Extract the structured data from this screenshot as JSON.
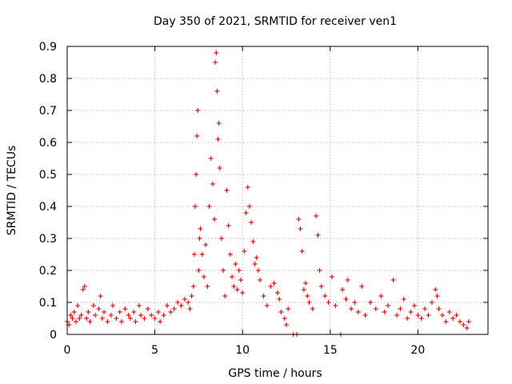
{
  "chart_data": {
    "type": "scatter",
    "title": "Day 350 of 2021, SRMTID for receiver ven1",
    "xlabel": "GPS time / hours",
    "ylabel": "SRMTID / TECUs",
    "xlim": [
      0,
      24
    ],
    "ylim": [
      0,
      0.9
    ],
    "xticks": [
      0,
      5,
      10,
      15,
      20
    ],
    "xtick_labels": [
      "0",
      "5",
      "10",
      "15",
      "20"
    ],
    "yticks": [
      0,
      0.1,
      0.2,
      0.3,
      0.4,
      0.5,
      0.6,
      0.7,
      0.8,
      0.9
    ],
    "ytick_labels": [
      "0",
      "0.1",
      "0.2",
      "0.3",
      "0.4",
      "0.5",
      "0.6",
      "0.7",
      "0.8",
      "0.9"
    ],
    "grid": true,
    "marker": "plus",
    "series": [
      {
        "name": "ven1",
        "color": "#e00000",
        "points": [
          [
            0.0,
            0.04
          ],
          [
            0.1,
            0.03
          ],
          [
            0.2,
            0.06
          ],
          [
            0.3,
            0.05
          ],
          [
            0.4,
            0.07
          ],
          [
            0.5,
            0.04
          ],
          [
            0.6,
            0.09
          ],
          [
            0.7,
            0.05
          ],
          [
            0.8,
            0.06
          ],
          [
            0.9,
            0.14
          ],
          [
            1.0,
            0.15
          ],
          [
            1.1,
            0.05
          ],
          [
            1.2,
            0.07
          ],
          [
            1.3,
            0.04
          ],
          [
            1.5,
            0.09
          ],
          [
            1.6,
            0.06
          ],
          [
            1.8,
            0.08
          ],
          [
            1.9,
            0.12
          ],
          [
            2.0,
            0.05
          ],
          [
            2.1,
            0.07
          ],
          [
            2.3,
            0.04
          ],
          [
            2.5,
            0.06
          ],
          [
            2.6,
            0.09
          ],
          [
            2.8,
            0.05
          ],
          [
            3.0,
            0.07
          ],
          [
            3.1,
            0.04
          ],
          [
            3.3,
            0.08
          ],
          [
            3.5,
            0.06
          ],
          [
            3.6,
            0.05
          ],
          [
            3.8,
            0.07
          ],
          [
            3.9,
            0.04
          ],
          [
            4.1,
            0.09
          ],
          [
            4.2,
            0.06
          ],
          [
            4.4,
            0.05
          ],
          [
            4.6,
            0.08
          ],
          [
            4.8,
            0.06
          ],
          [
            5.0,
            0.05
          ],
          [
            5.2,
            0.07
          ],
          [
            5.3,
            0.04
          ],
          [
            5.5,
            0.06
          ],
          [
            5.7,
            0.09
          ],
          [
            5.9,
            0.07
          ],
          [
            6.1,
            0.08
          ],
          [
            6.3,
            0.1
          ],
          [
            6.5,
            0.09
          ],
          [
            6.7,
            0.11
          ],
          [
            6.9,
            0.1
          ],
          [
            7.0,
            0.08
          ],
          [
            7.1,
            0.12
          ],
          [
            7.2,
            0.15
          ],
          [
            7.25,
            0.25
          ],
          [
            7.3,
            0.4
          ],
          [
            7.35,
            0.5
          ],
          [
            7.4,
            0.62
          ],
          [
            7.45,
            0.7
          ],
          [
            7.5,
            0.2
          ],
          [
            7.55,
            0.3
          ],
          [
            7.6,
            0.33
          ],
          [
            7.7,
            0.25
          ],
          [
            7.8,
            0.18
          ],
          [
            7.9,
            0.28
          ],
          [
            8.0,
            0.15
          ],
          [
            8.1,
            0.4
          ],
          [
            8.2,
            0.55
          ],
          [
            8.3,
            0.47
          ],
          [
            8.4,
            0.36
          ],
          [
            8.45,
            0.85
          ],
          [
            8.5,
            0.88
          ],
          [
            8.55,
            0.76
          ],
          [
            8.6,
            0.61
          ],
          [
            8.65,
            0.66
          ],
          [
            8.7,
            0.52
          ],
          [
            8.8,
            0.3
          ],
          [
            8.9,
            0.2
          ],
          [
            9.0,
            0.12
          ],
          [
            9.1,
            0.45
          ],
          [
            9.2,
            0.34
          ],
          [
            9.3,
            0.25
          ],
          [
            9.4,
            0.18
          ],
          [
            9.5,
            0.15
          ],
          [
            9.6,
            0.22
          ],
          [
            9.7,
            0.14
          ],
          [
            9.8,
            0.2
          ],
          [
            9.9,
            0.17
          ],
          [
            10.0,
            0.13
          ],
          [
            10.1,
            0.26
          ],
          [
            10.2,
            0.38
          ],
          [
            10.3,
            0.46
          ],
          [
            10.4,
            0.4
          ],
          [
            10.5,
            0.35
          ],
          [
            10.6,
            0.29
          ],
          [
            10.7,
            0.22
          ],
          [
            10.8,
            0.24
          ],
          [
            10.9,
            0.2
          ],
          [
            11.0,
            0.17
          ],
          [
            11.2,
            0.12
          ],
          [
            11.4,
            0.09
          ],
          [
            11.6,
            0.15
          ],
          [
            11.8,
            0.16
          ],
          [
            12.0,
            0.13
          ],
          [
            12.1,
            0.11
          ],
          [
            12.2,
            0.07
          ],
          [
            12.4,
            0.05
          ],
          [
            12.5,
            0.03
          ],
          [
            12.6,
            0.08
          ],
          [
            12.9,
            0.0
          ],
          [
            13.1,
            0.0
          ],
          [
            13.2,
            0.36
          ],
          [
            13.3,
            0.33
          ],
          [
            13.4,
            0.26
          ],
          [
            13.5,
            0.14
          ],
          [
            13.6,
            0.16
          ],
          [
            13.7,
            0.12
          ],
          [
            13.8,
            0.1
          ],
          [
            14.0,
            0.08
          ],
          [
            14.2,
            0.37
          ],
          [
            14.3,
            0.31
          ],
          [
            14.4,
            0.2
          ],
          [
            14.5,
            0.15
          ],
          [
            14.7,
            0.12
          ],
          [
            14.9,
            0.1
          ],
          [
            15.1,
            0.18
          ],
          [
            15.3,
            0.09
          ],
          [
            15.6,
            0.0
          ],
          [
            15.7,
            0.14
          ],
          [
            15.9,
            0.11
          ],
          [
            16.0,
            0.17
          ],
          [
            16.2,
            0.08
          ],
          [
            16.4,
            0.1
          ],
          [
            16.6,
            0.07
          ],
          [
            16.8,
            0.15
          ],
          [
            17.0,
            0.06
          ],
          [
            17.3,
            0.1
          ],
          [
            17.6,
            0.08
          ],
          [
            17.9,
            0.12
          ],
          [
            18.1,
            0.07
          ],
          [
            18.3,
            0.09
          ],
          [
            18.6,
            0.17
          ],
          [
            18.8,
            0.06
          ],
          [
            19.0,
            0.08
          ],
          [
            19.2,
            0.11
          ],
          [
            19.4,
            0.05
          ],
          [
            19.6,
            0.07
          ],
          [
            19.8,
            0.09
          ],
          [
            20.0,
            0.06
          ],
          [
            20.2,
            0.05
          ],
          [
            20.4,
            0.08
          ],
          [
            20.6,
            0.06
          ],
          [
            20.8,
            0.1
          ],
          [
            21.0,
            0.14
          ],
          [
            21.1,
            0.12
          ],
          [
            21.2,
            0.08
          ],
          [
            21.4,
            0.06
          ],
          [
            21.6,
            0.04
          ],
          [
            21.8,
            0.07
          ],
          [
            22.0,
            0.05
          ],
          [
            22.2,
            0.06
          ],
          [
            22.4,
            0.04
          ],
          [
            22.6,
            0.03
          ],
          [
            22.8,
            0.02
          ],
          [
            22.9,
            0.04
          ]
        ]
      }
    ]
  }
}
